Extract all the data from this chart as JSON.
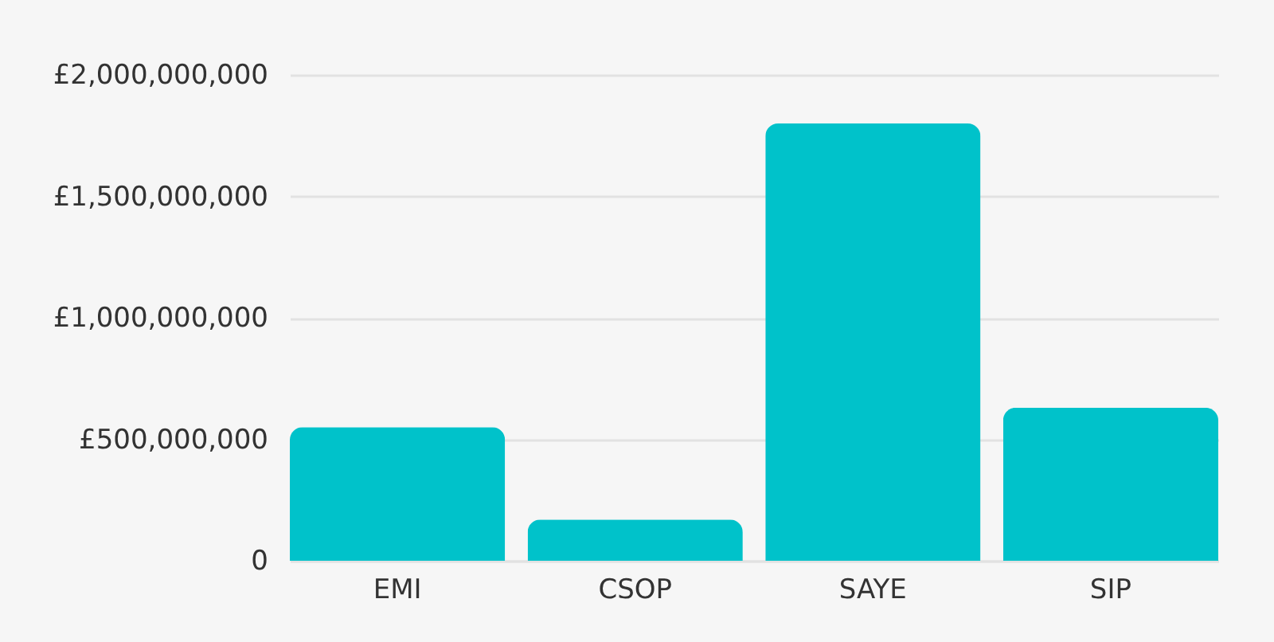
{
  "chart_data": {
    "type": "bar",
    "categories": [
      "EMI",
      "CSOP",
      "SAYE",
      "SIP"
    ],
    "values": [
      550000000,
      170000000,
      1800000000,
      630000000
    ],
    "color": "#00c2ca",
    "ylim": [
      0,
      2000000000
    ],
    "yticks": [
      0,
      {
        "value": 500000000,
        "label": "£500,000,000"
      },
      {
        "value": 1000000000,
        "label": "£1,000,000,000"
      },
      {
        "value": 1500000000,
        "label": "£1,500,000,000"
      },
      {
        "value": 2000000000,
        "label": "£2,000,000,000"
      }
    ],
    "grid": "y"
  }
}
